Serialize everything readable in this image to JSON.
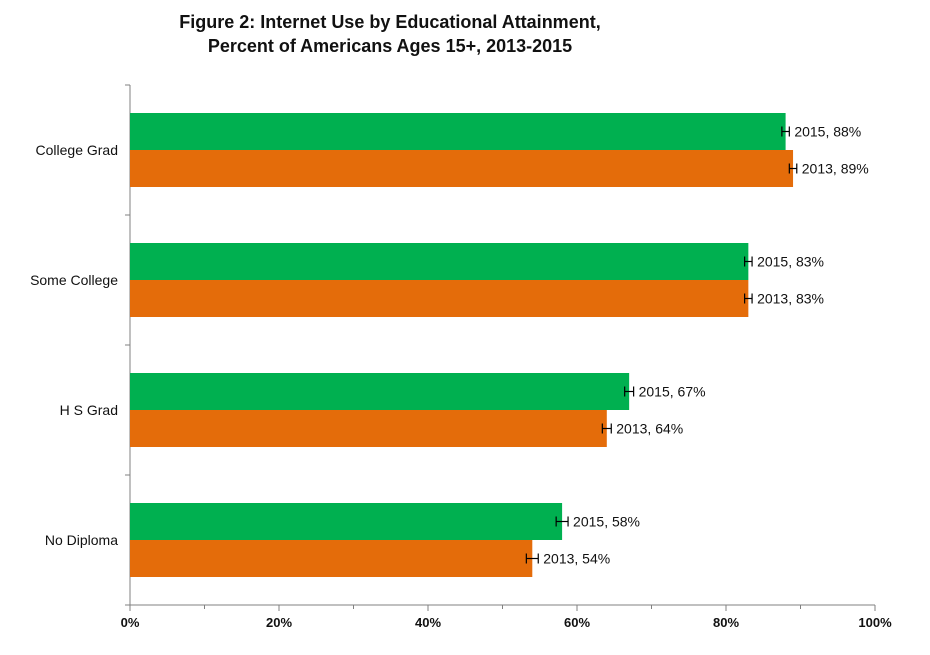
{
  "chart_data": {
    "type": "bar",
    "orientation": "horizontal",
    "title": "Figure 2: Internet Use by Educational Attainment,",
    "subtitle": "Percent of Americans Ages 15+, 2013-2015",
    "categories": [
      "College Grad",
      "Some College",
      "H S Grad",
      "No Diploma"
    ],
    "series": [
      {
        "name": "2015",
        "color": "#00b050",
        "values": [
          88,
          83,
          67,
          58
        ],
        "error": [
          0.5,
          0.5,
          0.6,
          0.8
        ],
        "labels": [
          "2015, 88%",
          "2015, 83%",
          "2015, 67%",
          "2015, 58%"
        ]
      },
      {
        "name": "2013",
        "color": "#e46c0a",
        "values": [
          89,
          83,
          64,
          54
        ],
        "error": [
          0.5,
          0.5,
          0.6,
          0.8
        ],
        "labels": [
          "2013, 89%",
          "2013, 83%",
          "2013, 64%",
          "2013, 54%"
        ]
      }
    ],
    "xlim": [
      0,
      100
    ],
    "xticks": [
      "0%",
      "20%",
      "40%",
      "60%",
      "80%",
      "100%"
    ],
    "grid": false,
    "legend": "none"
  }
}
